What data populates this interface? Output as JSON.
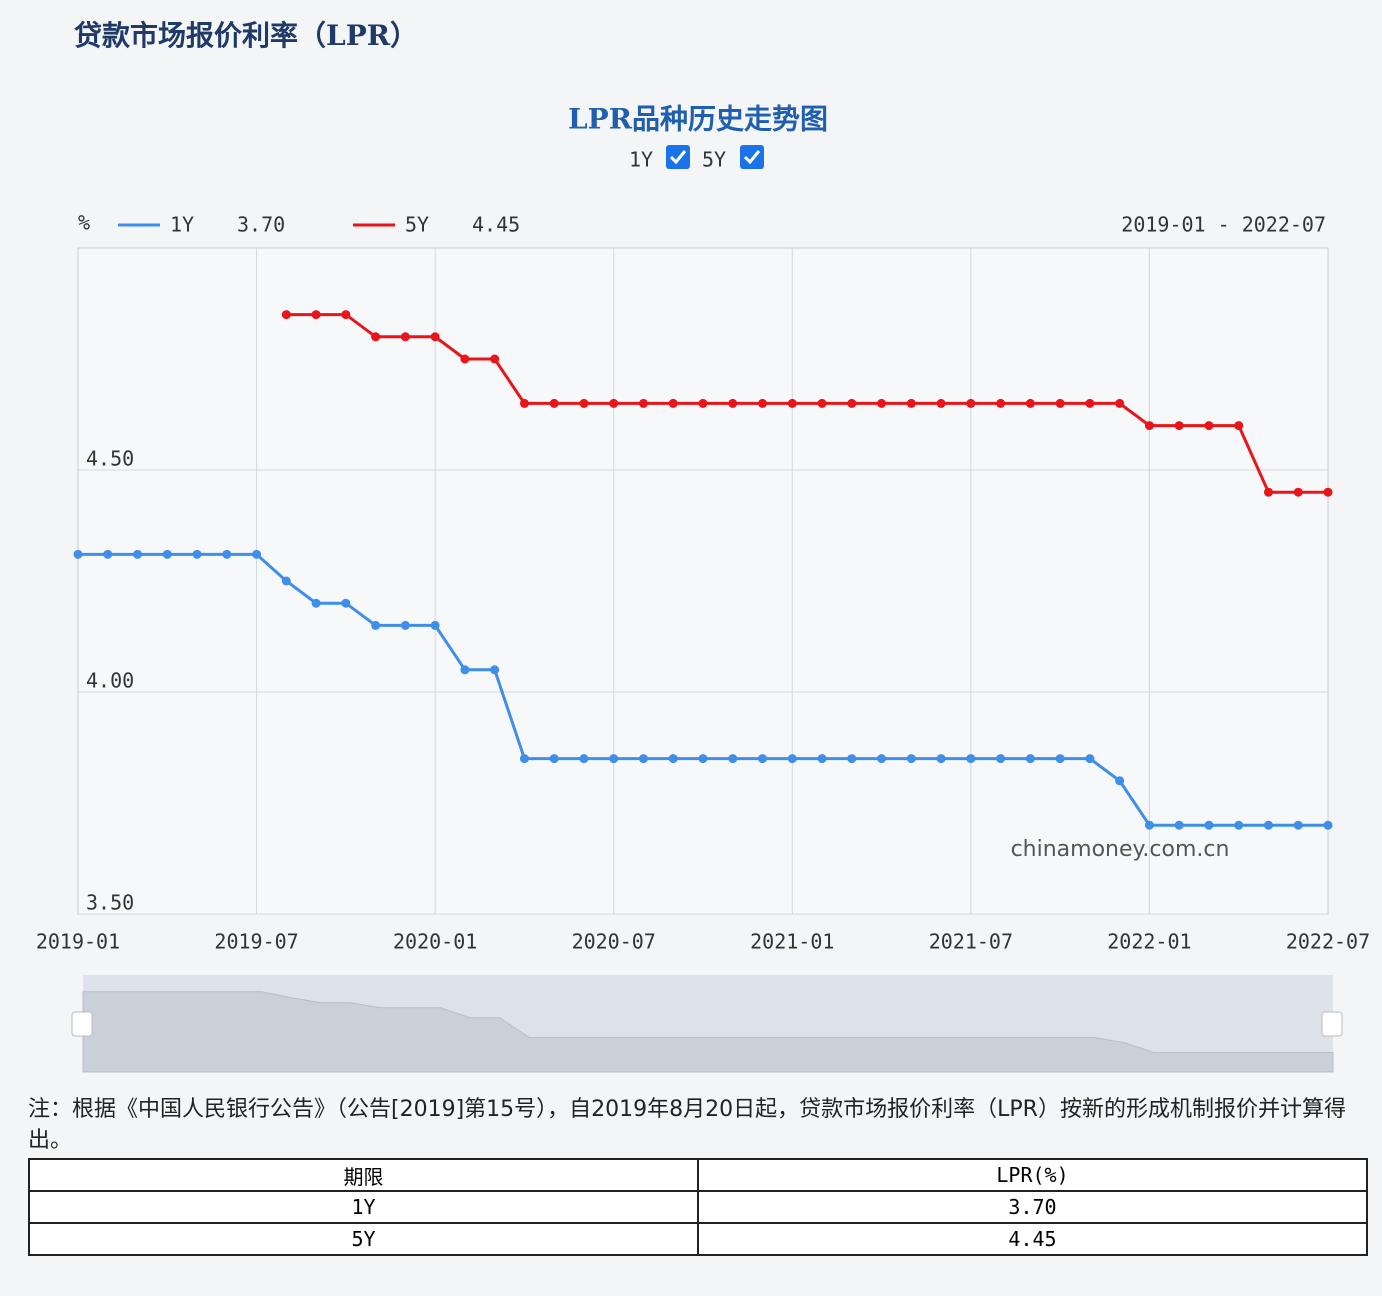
{
  "header": {
    "title": "贷款市场报价利率（LPR）"
  },
  "chart_data": {
    "type": "line",
    "title": "LPR品种历史走势图",
    "ylabel": "%",
    "range_label": "2019-01  -  2022-07",
    "watermark": "chinamoney.com.cn",
    "categories": [
      "2019-01",
      null,
      null,
      null,
      null,
      null,
      "2019-07",
      null,
      null,
      null,
      null,
      null,
      "2020-01",
      null,
      null,
      null,
      null,
      null,
      "2020-07",
      null,
      null,
      null,
      null,
      null,
      "2021-01",
      null,
      null,
      null,
      null,
      null,
      "2021-07",
      null,
      null,
      null,
      null,
      null,
      "2022-01",
      null,
      null,
      null,
      null,
      null,
      "2022-07"
    ],
    "series": [
      {
        "name": "1Y",
        "color": "#3f8ee8",
        "legend_value": "3.70",
        "values": [
          4.31,
          4.31,
          4.31,
          4.31,
          4.31,
          4.31,
          4.31,
          4.25,
          4.2,
          4.2,
          4.15,
          4.15,
          4.15,
          4.05,
          4.05,
          3.85,
          3.85,
          3.85,
          3.85,
          3.85,
          3.85,
          3.85,
          3.85,
          3.85,
          3.85,
          3.85,
          3.85,
          3.85,
          3.85,
          3.85,
          3.85,
          3.85,
          3.85,
          3.85,
          3.85,
          3.8,
          3.7,
          3.7,
          3.7,
          3.7,
          3.7,
          3.7,
          3.7
        ]
      },
      {
        "name": "5Y",
        "color": "#e8151b",
        "legend_value": "4.45",
        "values": [
          null,
          null,
          null,
          null,
          null,
          null,
          null,
          4.85,
          4.85,
          4.85,
          4.8,
          4.8,
          4.8,
          4.75,
          4.75,
          4.65,
          4.65,
          4.65,
          4.65,
          4.65,
          4.65,
          4.65,
          4.65,
          4.65,
          4.65,
          4.65,
          4.65,
          4.65,
          4.65,
          4.65,
          4.65,
          4.65,
          4.65,
          4.65,
          4.65,
          4.65,
          4.6,
          4.6,
          4.6,
          4.6,
          4.45,
          4.45,
          4.45
        ]
      }
    ],
    "ylim": [
      3.5,
      5.0
    ],
    "yticks": [
      {
        "value": 3.5,
        "label": "3.50"
      },
      {
        "value": 4,
        "label": "4.00"
      },
      {
        "value": 4.5,
        "label": "4.50"
      }
    ],
    "grid": true
  },
  "note": "注：根据《中国人民银行公告》（公告[2019]第15号），自2019年8月20日起，贷款市场报价利率（LPR）按新的形成机制报价并计算得出。",
  "table": {
    "headers": [
      "期限",
      "LPR(%)"
    ],
    "rows": [
      [
        "1Y",
        "3.70"
      ],
      [
        "5Y",
        "4.45"
      ]
    ]
  }
}
